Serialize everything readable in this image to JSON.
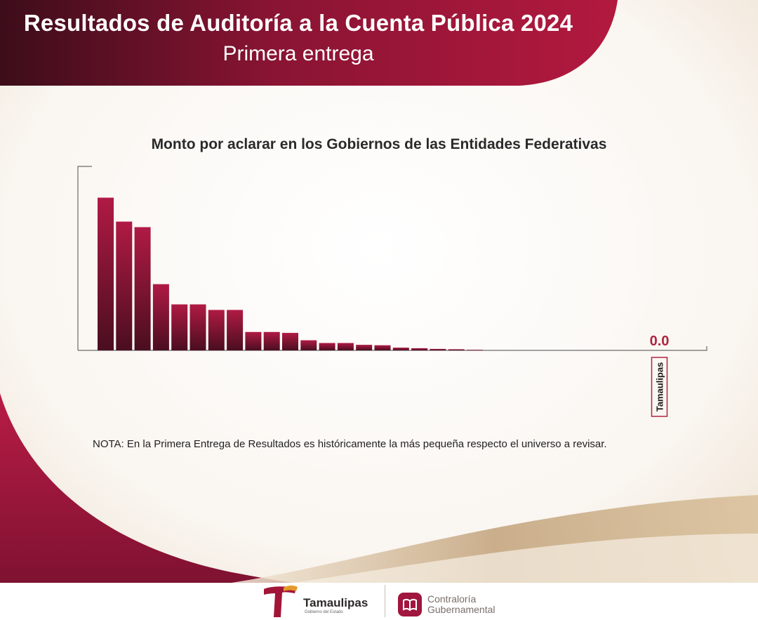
{
  "header": {
    "title": "Resultados de Auditoría a la Cuenta Pública 2024",
    "subtitle": "Primera entrega"
  },
  "chart_data": {
    "type": "bar",
    "title": "Monto por aclarar en los Gobiernos de las Entidades Federativas",
    "xlabel": "",
    "ylabel": "",
    "ylim": [
      0,
      100
    ],
    "grid": false,
    "legend": "none",
    "bar_color": "#a8173e",
    "highlight_color": "#b0243f",
    "values": [
      83,
      70,
      67,
      36,
      25,
      25,
      22,
      22,
      10,
      10,
      9.5,
      5.5,
      4,
      4,
      3,
      2.8,
      1.5,
      1.2,
      0.8,
      0.6,
      0.3,
      0,
      0,
      0,
      0,
      0,
      0,
      0,
      0,
      0,
      0,
      0,
      0
    ],
    "categories": [
      "",
      "",
      "",
      "",
      "",
      "",
      "",
      "",
      "",
      "",
      "",
      "",
      "",
      "",
      "",
      "",
      "",
      "",
      "",
      "",
      "",
      "",
      "",
      "",
      "",
      "",
      "",
      "",
      "",
      "",
      "Tamaulipas",
      "",
      ""
    ],
    "highlight": {
      "category": "Tamaulipas",
      "value_label": "0.0"
    }
  },
  "note": "NOTA: En la Primera Entrega de Resultados es históricamente la más pequeña respecto el universo a revisar.",
  "footer": {
    "brand_name": "Tamaulipas",
    "brand_tag": "Gobierno del Estado",
    "contraloria_line1": "Contraloría",
    "contraloria_line2": "Gubernamental",
    "brand_icon": "tamaulipas-t-logo",
    "contraloria_icon": "open-book-icon"
  }
}
